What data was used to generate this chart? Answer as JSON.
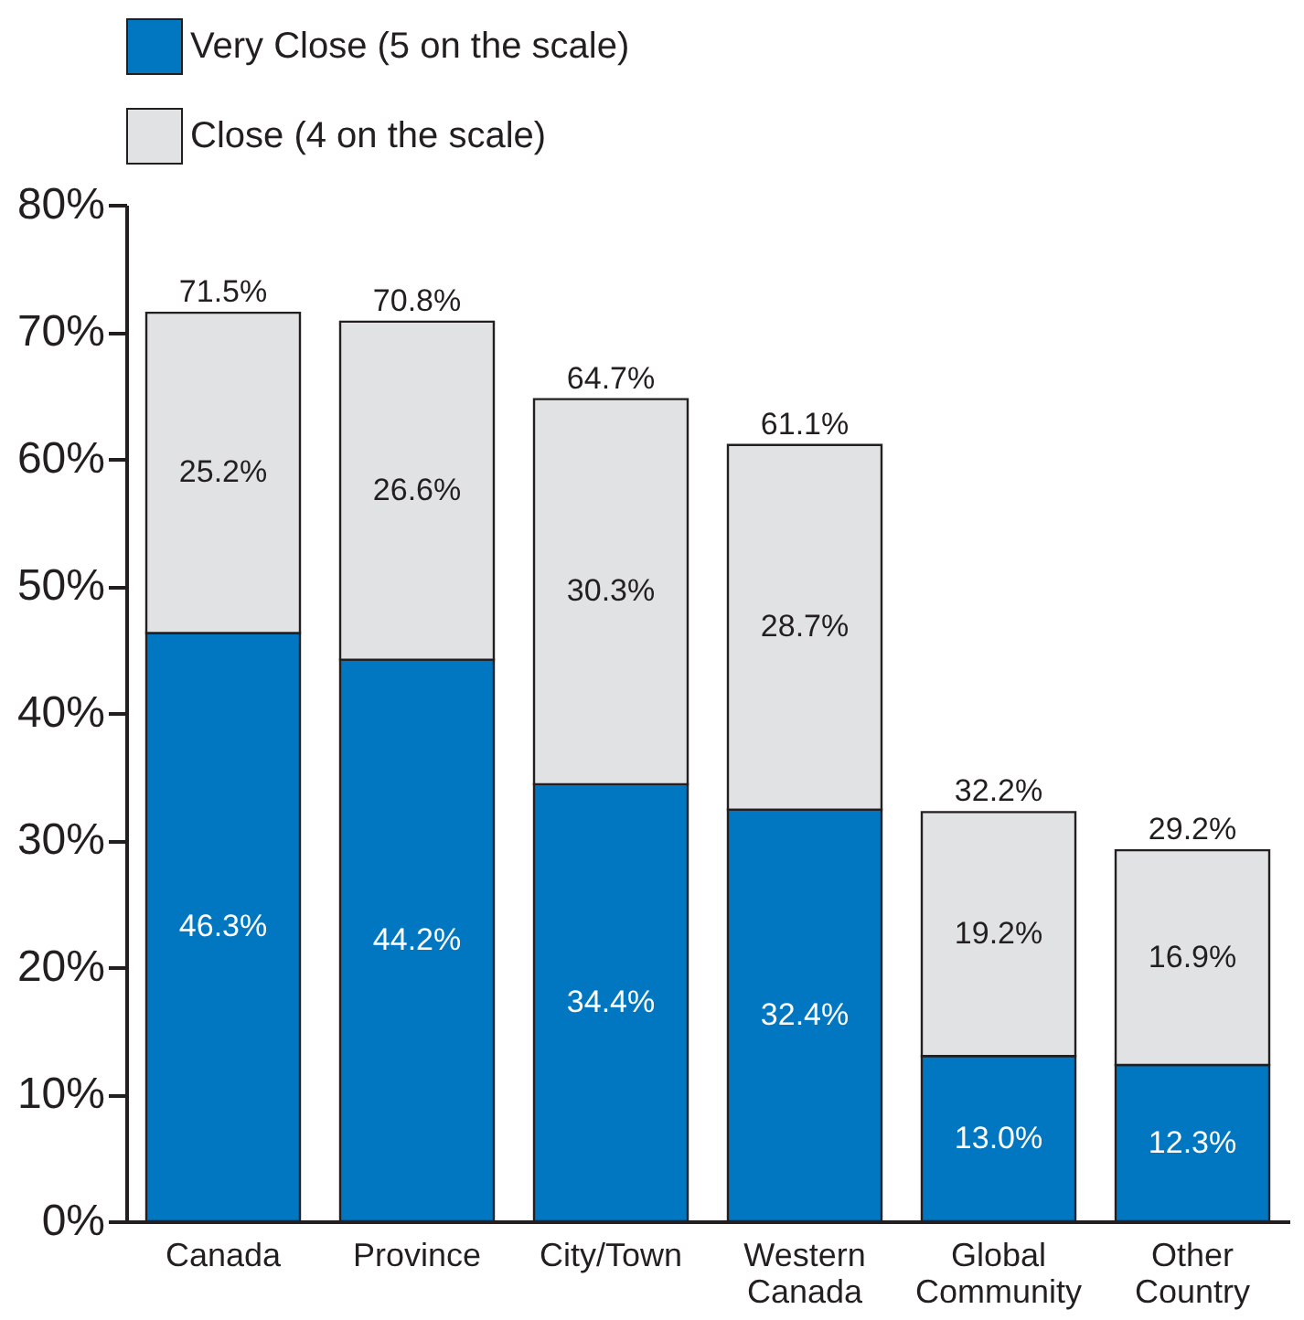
{
  "chart_data": {
    "type": "bar",
    "stacked": true,
    "categories": [
      "Canada",
      "Province",
      "City/Town",
      "Western Canada",
      "Global Community",
      "Other Country"
    ],
    "series": [
      {
        "name": "Very Close (5 on the scale)",
        "color": "#0077c0",
        "values": [
          46.3,
          44.2,
          34.4,
          32.4,
          13.0,
          12.3
        ],
        "value_labels": [
          "46.3%",
          "44.2%",
          "34.4%",
          "32.4%",
          "13.0%",
          "12.3%"
        ]
      },
      {
        "name": "Close (4 on the scale)",
        "color": "#e1e2e4",
        "values": [
          25.2,
          26.6,
          30.3,
          28.7,
          19.2,
          16.9
        ],
        "value_labels": [
          "25.2%",
          "26.6%",
          "30.3%",
          "28.7%",
          "19.2%",
          "16.9%"
        ]
      }
    ],
    "totals": [
      "71.5%",
      "70.8%",
      "64.7%",
      "61.1%",
      "32.2%",
      "29.2%"
    ],
    "ylim": [
      0,
      80
    ],
    "yticks": [
      {
        "value": 0,
        "label": "0%"
      },
      {
        "value": 10,
        "label": "10%"
      },
      {
        "value": 20,
        "label": "20%"
      },
      {
        "value": 30,
        "label": "30%"
      },
      {
        "value": 40,
        "label": "40%"
      },
      {
        "value": 50,
        "label": "50%"
      },
      {
        "value": 60,
        "label": "60%"
      },
      {
        "value": 70,
        "label": "70%"
      },
      {
        "value": 80,
        "label": "80%"
      }
    ],
    "grid": false,
    "legend": "top"
  }
}
